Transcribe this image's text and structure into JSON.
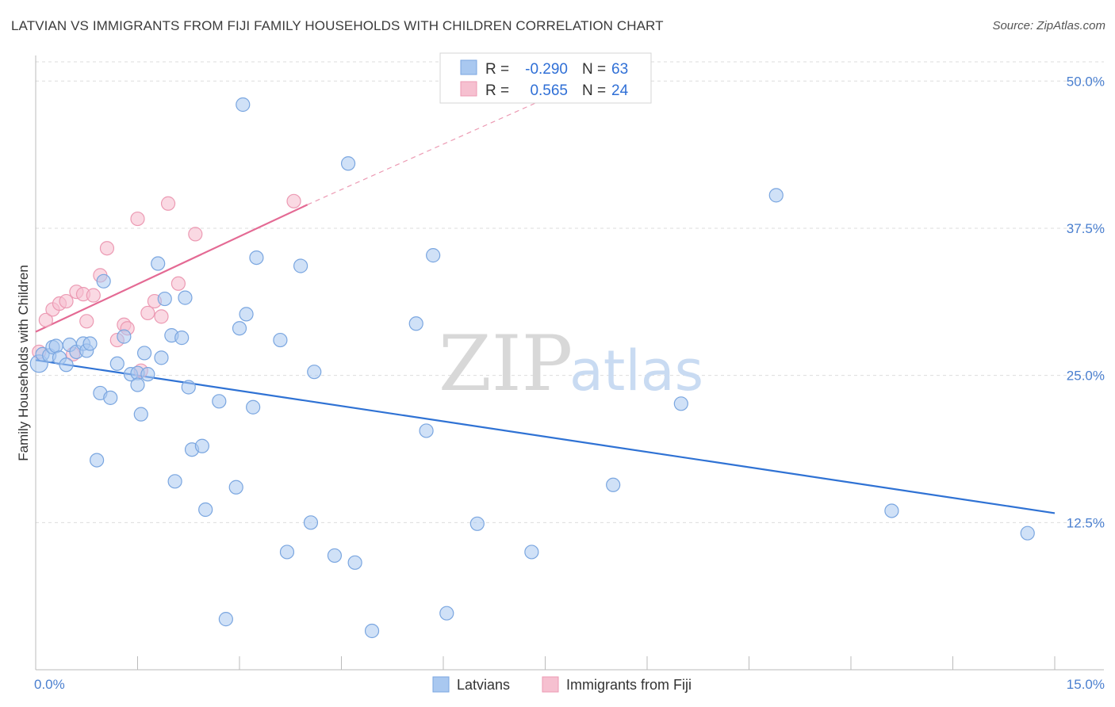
{
  "header": {
    "title": "LATVIAN VS IMMIGRANTS FROM FIJI FAMILY HOUSEHOLDS WITH CHILDREN CORRELATION CHART",
    "source": "Source: ZipAtlas.com"
  },
  "watermark": {
    "zip": "ZIP",
    "atlas": "atlas"
  },
  "colors": {
    "blue_fill": "#a9c8f0",
    "blue_stroke": "#7aa6e0",
    "blue_line": "#2f72d4",
    "pink_fill": "#f6c0d0",
    "pink_stroke": "#ec9ab3",
    "pink_line": "#e46a94",
    "grid": "#dddddd",
    "axis_label": "#4a7fcf"
  },
  "legend": {
    "rows": [
      {
        "r_label": "R =",
        "r_value": "-0.290",
        "n_label": "N =",
        "n_value": "63"
      },
      {
        "r_label": "R =",
        "r_value": "0.565",
        "n_label": "N =",
        "n_value": "24"
      }
    ]
  },
  "bottom_legend": {
    "series1": "Latvians",
    "series2": "Immigrants from Fiji"
  },
  "chart_data": {
    "type": "scatter",
    "title": "LATVIAN VS IMMIGRANTS FROM FIJI FAMILY HOUSEHOLDS WITH CHILDREN CORRELATION CHART",
    "xlabel": "",
    "ylabel": "Family Households with Children",
    "xlim": [
      0,
      15
    ],
    "ylim": [
      0,
      51.5
    ],
    "x_tick_labels": {
      "min": "0.0%",
      "max": "15.0%"
    },
    "y_ticks": [
      {
        "value": 50,
        "label": "50.0%"
      },
      {
        "value": 37.5,
        "label": "37.5%"
      },
      {
        "value": 25,
        "label": "25.0%"
      },
      {
        "value": 12.5,
        "label": "12.5%"
      }
    ],
    "series": [
      {
        "name": "Latvians",
        "color": "blue",
        "R": -0.29,
        "N": 63,
        "trend": {
          "x0": 0,
          "y0": 26.3,
          "x1": 15,
          "y1": 13.3
        },
        "points": [
          [
            0.05,
            26.0
          ],
          [
            0.1,
            26.8
          ],
          [
            0.2,
            26.7
          ],
          [
            0.25,
            27.4
          ],
          [
            0.3,
            27.5
          ],
          [
            0.35,
            26.5
          ],
          [
            0.45,
            25.9
          ],
          [
            0.5,
            27.6
          ],
          [
            0.6,
            27.0
          ],
          [
            0.7,
            27.7
          ],
          [
            0.75,
            27.1
          ],
          [
            0.8,
            27.7
          ],
          [
            0.9,
            17.8
          ],
          [
            0.95,
            23.5
          ],
          [
            1.0,
            33.0
          ],
          [
            1.1,
            23.1
          ],
          [
            1.2,
            26.0
          ],
          [
            1.3,
            28.3
          ],
          [
            1.4,
            25.1
          ],
          [
            1.5,
            25.2
          ],
          [
            1.5,
            24.2
          ],
          [
            1.55,
            21.7
          ],
          [
            1.6,
            26.9
          ],
          [
            1.65,
            25.1
          ],
          [
            1.8,
            34.5
          ],
          [
            1.85,
            26.5
          ],
          [
            1.9,
            31.5
          ],
          [
            2.0,
            28.4
          ],
          [
            2.05,
            16.0
          ],
          [
            2.15,
            28.2
          ],
          [
            2.2,
            31.6
          ],
          [
            2.25,
            24.0
          ],
          [
            2.3,
            18.7
          ],
          [
            2.45,
            19.0
          ],
          [
            2.5,
            13.6
          ],
          [
            2.7,
            22.8
          ],
          [
            2.8,
            4.3
          ],
          [
            2.95,
            15.5
          ],
          [
            3.0,
            29.0
          ],
          [
            3.05,
            48.0
          ],
          [
            3.1,
            30.2
          ],
          [
            3.2,
            22.3
          ],
          [
            3.25,
            35.0
          ],
          [
            3.6,
            28.0
          ],
          [
            3.7,
            10.0
          ],
          [
            3.9,
            34.3
          ],
          [
            4.05,
            12.5
          ],
          [
            4.1,
            25.3
          ],
          [
            4.4,
            9.7
          ],
          [
            4.6,
            43.0
          ],
          [
            4.7,
            9.1
          ],
          [
            4.95,
            3.3
          ],
          [
            5.6,
            29.4
          ],
          [
            5.75,
            20.3
          ],
          [
            5.85,
            35.2
          ],
          [
            6.05,
            4.8
          ],
          [
            6.5,
            12.4
          ],
          [
            7.3,
            10.0
          ],
          [
            8.5,
            15.7
          ],
          [
            9.5,
            22.6
          ],
          [
            10.9,
            40.3
          ],
          [
            12.6,
            13.5
          ],
          [
            14.6,
            11.6
          ]
        ]
      },
      {
        "name": "Immigrants from Fiji",
        "color": "pink",
        "R": 0.565,
        "N": 24,
        "trend": {
          "x0": 0,
          "y0": 28.7,
          "x1": 4.0,
          "y1": 39.5,
          "dash_to_x": 7.5,
          "dash_to_y": 48.5
        },
        "points": [
          [
            0.05,
            27.0
          ],
          [
            0.15,
            29.7
          ],
          [
            0.25,
            30.6
          ],
          [
            0.35,
            31.1
          ],
          [
            0.45,
            31.3
          ],
          [
            0.55,
            26.8
          ],
          [
            0.6,
            32.1
          ],
          [
            0.7,
            31.9
          ],
          [
            0.75,
            29.6
          ],
          [
            0.85,
            31.8
          ],
          [
            0.95,
            33.5
          ],
          [
            1.05,
            35.8
          ],
          [
            1.2,
            28.0
          ],
          [
            1.3,
            29.3
          ],
          [
            1.35,
            29.0
          ],
          [
            1.5,
            38.3
          ],
          [
            1.55,
            25.4
          ],
          [
            1.65,
            30.3
          ],
          [
            1.75,
            31.3
          ],
          [
            1.85,
            30.0
          ],
          [
            1.95,
            39.6
          ],
          [
            2.1,
            32.8
          ],
          [
            2.35,
            37.0
          ],
          [
            3.8,
            39.8
          ]
        ]
      }
    ]
  }
}
